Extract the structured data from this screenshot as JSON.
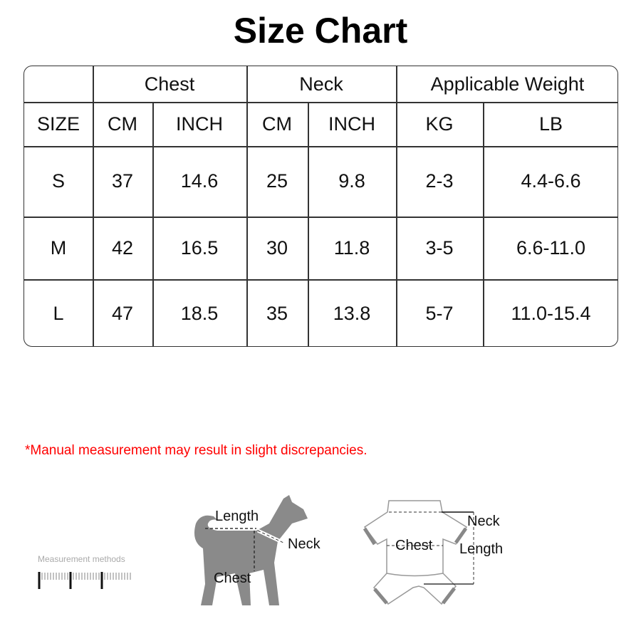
{
  "title": "Size Chart",
  "table": {
    "group_headers": [
      "Chest",
      "Neck",
      "Applicable Weight"
    ],
    "sub_headers": [
      "SIZE",
      "CM",
      "INCH",
      "CM",
      "INCH",
      "KG",
      "LB"
    ],
    "rows": [
      [
        "S",
        "37",
        "14.6",
        "25",
        "9.8",
        "2-3",
        "4.4-6.6"
      ],
      [
        "M",
        "42",
        "16.5",
        "30",
        "11.8",
        "3-5",
        "6.6-11.0"
      ],
      [
        "L",
        "47",
        "18.5",
        "35",
        "13.8",
        "5-7",
        "11.0-15.4"
      ]
    ]
  },
  "note": "*Manual measurement may result in slight discrepancies.",
  "note_color": "#ff0000",
  "measurement_label": "Measurement methods",
  "dog_diagram": {
    "length": "Length",
    "neck": "Neck",
    "chest": "Chest"
  },
  "garment_diagram": {
    "neck": "Neck",
    "chest": "Chest",
    "length": "Length"
  }
}
